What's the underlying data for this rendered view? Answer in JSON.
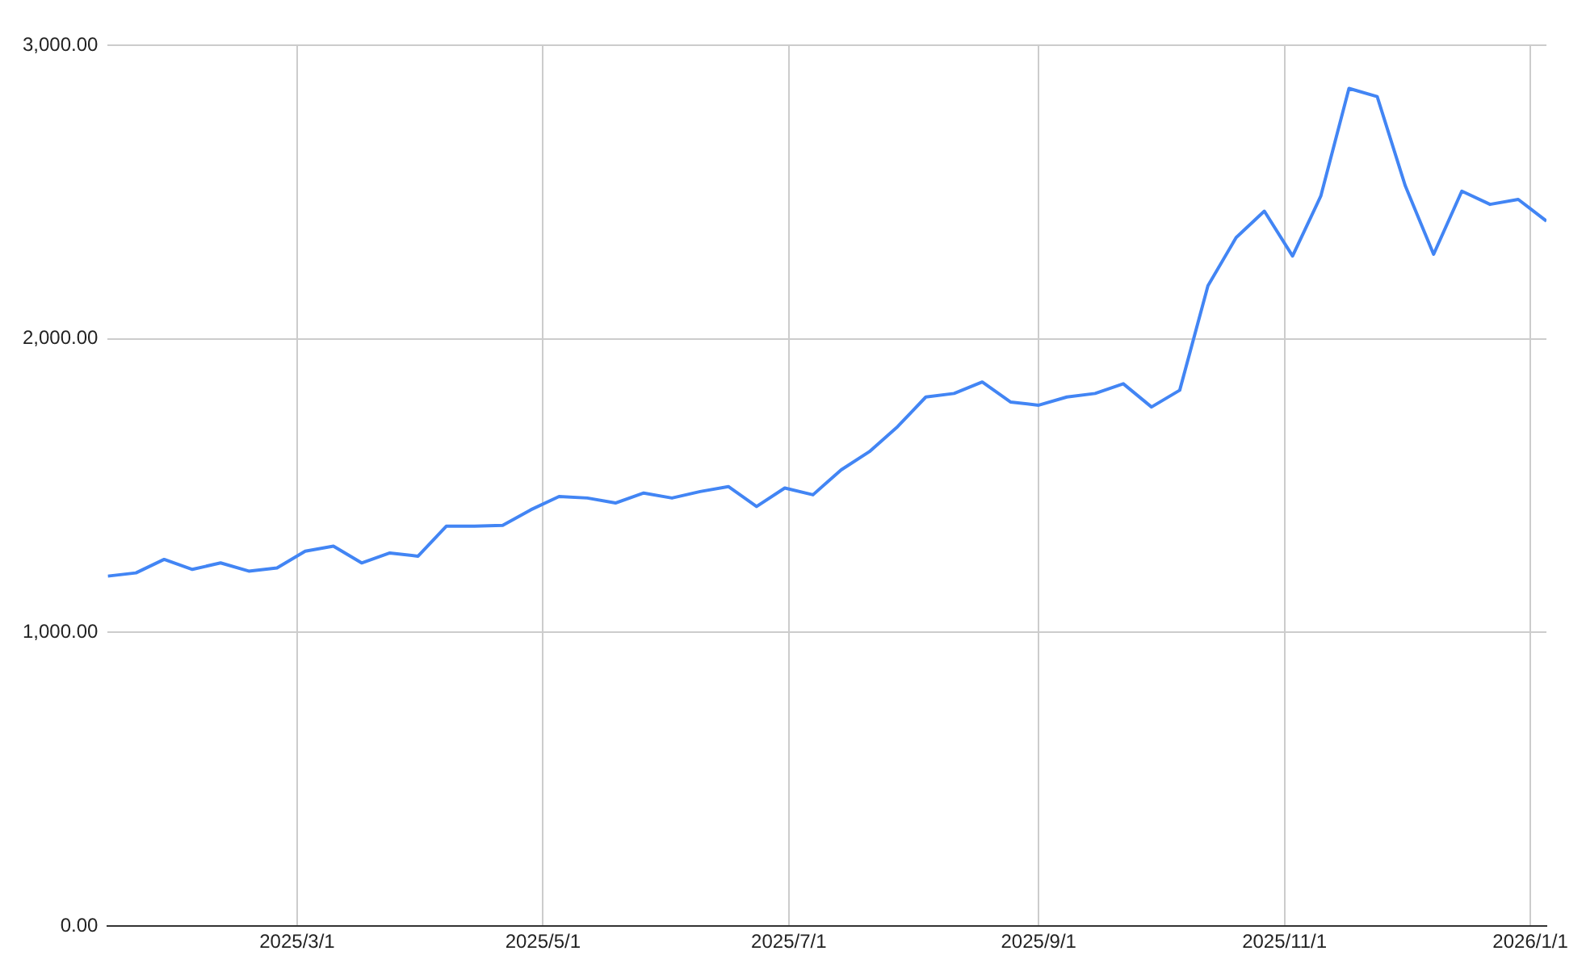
{
  "chart_data": {
    "type": "line",
    "x": [
      "2025-01-13",
      "2025-01-20",
      "2025-01-27",
      "2025-02-03",
      "2025-02-10",
      "2025-02-17",
      "2025-02-24",
      "2025-03-03",
      "2025-03-10",
      "2025-03-17",
      "2025-03-24",
      "2025-03-31",
      "2025-04-07",
      "2025-04-14",
      "2025-04-21",
      "2025-04-28",
      "2025-05-05",
      "2025-05-12",
      "2025-05-19",
      "2025-05-26",
      "2025-06-02",
      "2025-06-09",
      "2025-06-16",
      "2025-06-23",
      "2025-06-30",
      "2025-07-07",
      "2025-07-14",
      "2025-07-21",
      "2025-07-28",
      "2025-08-04",
      "2025-08-11",
      "2025-08-18",
      "2025-08-25",
      "2025-09-01",
      "2025-09-08",
      "2025-09-15",
      "2025-09-22",
      "2025-09-29",
      "2025-10-06",
      "2025-10-13",
      "2025-10-20",
      "2025-10-27",
      "2025-11-03",
      "2025-11-10",
      "2025-11-17",
      "2025-11-24",
      "2025-12-01",
      "2025-12-08",
      "2025-12-15",
      "2025-12-22",
      "2025-12-29",
      "2026-01-05"
    ],
    "series": [
      {
        "color": "#4285f4",
        "values": [
          1192,
          1203,
          1249,
          1215,
          1237,
          1209,
          1220,
          1277,
          1294,
          1237,
          1271,
          1260,
          1362,
          1362,
          1365,
          1418,
          1463,
          1458,
          1441,
          1475,
          1458,
          1480,
          1497,
          1429,
          1492,
          1469,
          1554,
          1616,
          1701,
          1802,
          1814,
          1853,
          1785,
          1774,
          1802,
          1814,
          1847,
          1768,
          1825,
          2181,
          2345,
          2435,
          2282,
          2486,
          2853,
          2825,
          2520,
          2288,
          2503,
          2458,
          2475,
          2401
        ]
      }
    ],
    "xlim": [
      "2025-01-13",
      "2026-01-05"
    ],
    "xticks": [
      {
        "value": "2025-03-01",
        "label": "2025/3/1"
      },
      {
        "value": "2025-05-01",
        "label": "2025/5/1"
      },
      {
        "value": "2025-07-01",
        "label": "2025/7/1"
      },
      {
        "value": "2025-09-01",
        "label": "2025/9/1"
      },
      {
        "value": "2025-11-01",
        "label": "2025/11/1"
      },
      {
        "value": "2026-01-01",
        "label": "2026/1/1"
      }
    ],
    "ylim": [
      0,
      3000
    ],
    "yticks": [
      {
        "value": 0,
        "label": "0.00"
      },
      {
        "value": 1000,
        "label": "1,000.00"
      },
      {
        "value": 2000,
        "label": "2,000.00"
      },
      {
        "value": 3000,
        "label": "3,000.00"
      }
    ],
    "grid": true,
    "legend": false,
    "marker": "none",
    "line_style": "solid"
  }
}
